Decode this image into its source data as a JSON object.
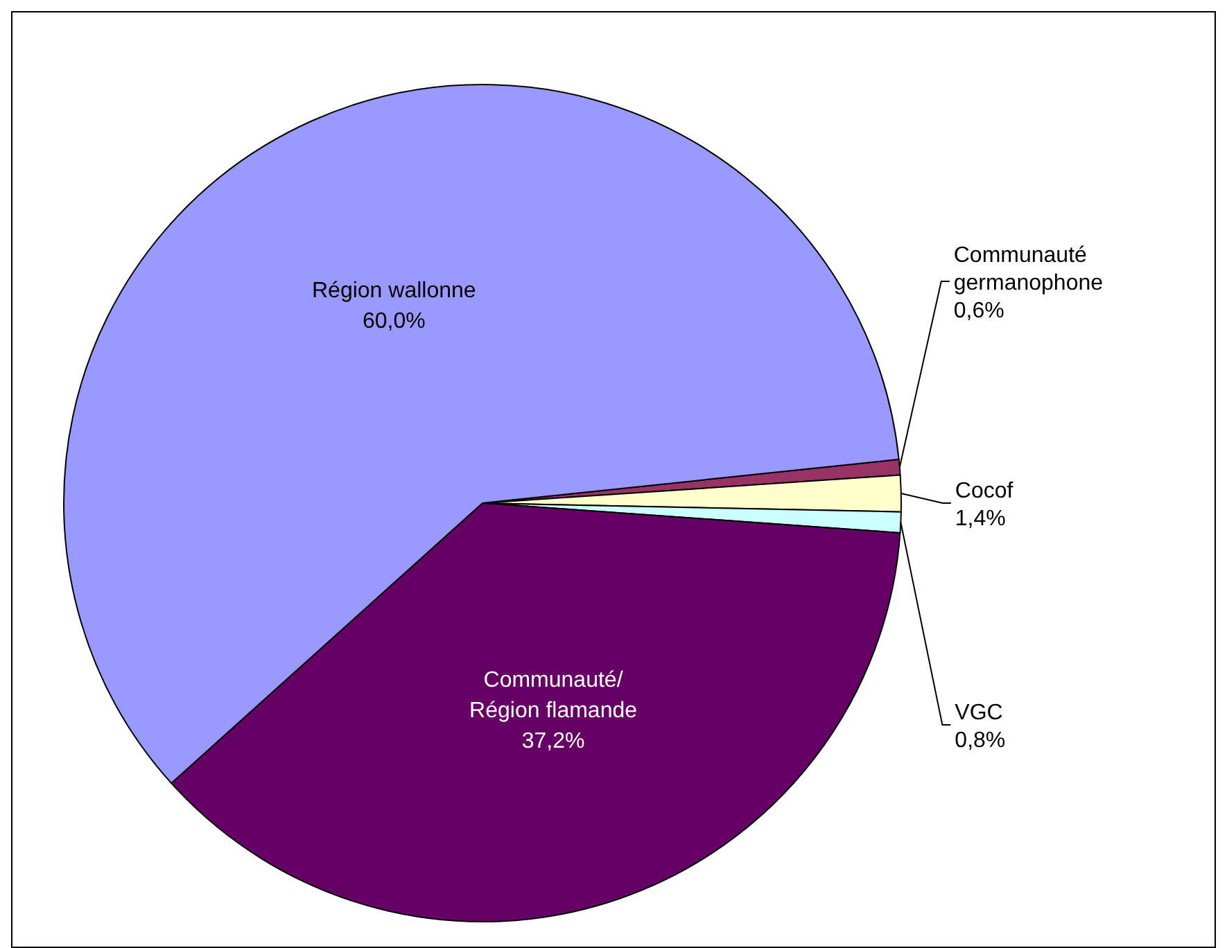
{
  "chart_data": {
    "type": "pie",
    "categories": [
      "Communauté\ngermanophone",
      "Cocof",
      "VGC",
      "Communauté/\nRégion flamande",
      "Région wallonne"
    ],
    "values": [
      0.6,
      1.4,
      0.8,
      37.2,
      60.0
    ],
    "value_labels": [
      "0,6%",
      "1,4%",
      "0,8%",
      "37,2%",
      "60,0%"
    ],
    "colors": [
      "#993366",
      "#ffffcc",
      "#ccffff",
      "#660066",
      "#9999ff"
    ]
  }
}
